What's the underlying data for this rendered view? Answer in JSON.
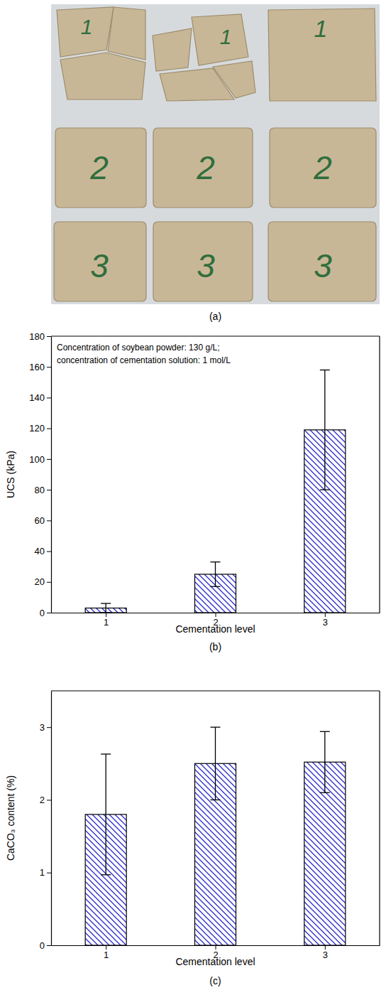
{
  "photo": {
    "specimens": [
      [
        "1",
        "1",
        "1"
      ],
      [
        "2",
        "2",
        "2"
      ],
      [
        "3",
        "3",
        "3"
      ]
    ],
    "caption": "(a)"
  },
  "chart_data": [
    {
      "type": "bar",
      "caption": "(b)",
      "annotations": [
        "Concentration of soybean powder: 130 g/L;",
        "concentration of cementation solution: 1 mol/L"
      ],
      "x_label": "Cementation level",
      "y_label": "UCS (kPa)",
      "categories": [
        "1",
        "2",
        "3"
      ],
      "values": [
        3,
        25,
        119
      ],
      "errors": [
        3,
        8,
        39
      ],
      "color": "#2b2bc8",
      "ylim": [
        0,
        180
      ],
      "yticks": [
        0,
        20,
        40,
        60,
        80,
        100,
        120,
        140,
        160,
        180
      ]
    },
    {
      "type": "bar",
      "caption": "(c)",
      "x_label": "Cementation level",
      "y_label": "CaCO₃ content (%)",
      "categories": [
        "1",
        "2",
        "3"
      ],
      "values": [
        1.8,
        2.5,
        2.52
      ],
      "errors": [
        0.83,
        0.5,
        0.42
      ],
      "color": "#2b2bc8",
      "ylim": [
        0,
        3.5
      ],
      "yticks": [
        0,
        1,
        2,
        3
      ]
    }
  ]
}
